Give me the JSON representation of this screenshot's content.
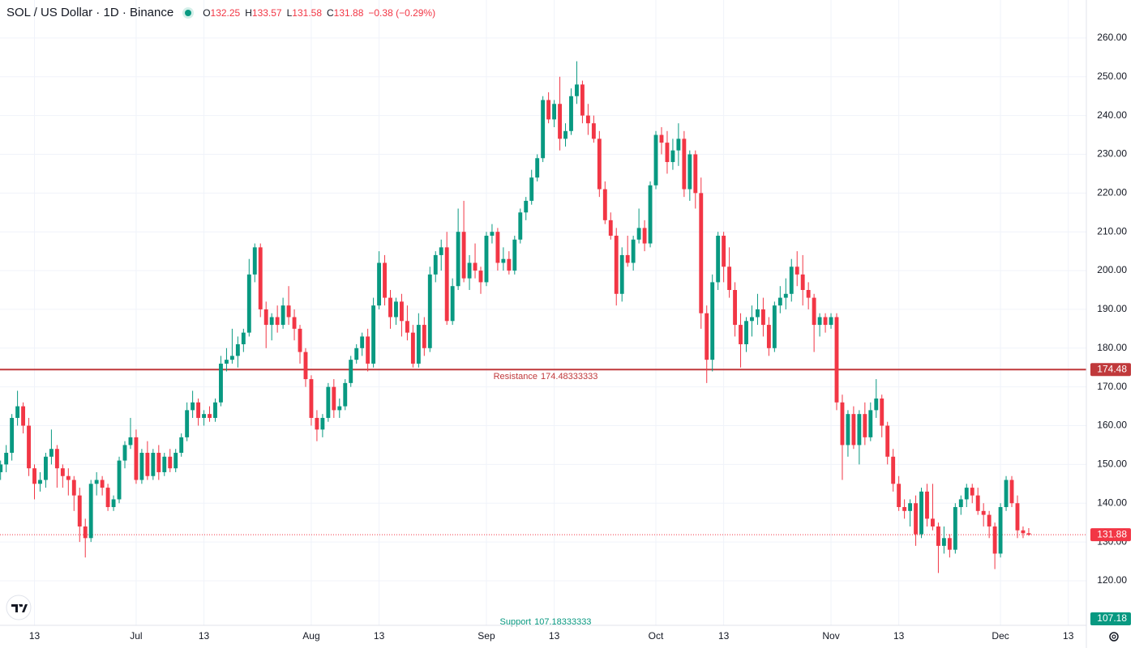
{
  "chart_data": {
    "type": "candlestick",
    "title": "SOL / US Dollar · 1D · Binance",
    "ohlc_labels": [
      "O",
      "H",
      "L",
      "C"
    ],
    "change": "−0.38 (−0.29%)",
    "up_color": "#089981",
    "down_color": "#f23645",
    "grid": true,
    "xlim": [
      -0.1,
      192.2
    ],
    "xticks": [
      {
        "value": 6,
        "label": "13"
      },
      {
        "value": 24,
        "label": "Jul"
      },
      {
        "value": 36,
        "label": "13"
      },
      {
        "value": 55,
        "label": "Aug"
      },
      {
        "value": 67,
        "label": "13"
      },
      {
        "value": 86,
        "label": "Sep"
      },
      {
        "value": 98,
        "label": "13"
      },
      {
        "value": 116,
        "label": "Oct"
      },
      {
        "value": 128,
        "label": "13"
      },
      {
        "value": 147,
        "label": "Nov"
      },
      {
        "value": 159,
        "label": "13"
      },
      {
        "value": 177,
        "label": "Dec"
      },
      {
        "value": 189,
        "label": "13"
      }
    ],
    "ylim": [
      108.5,
      269.8
    ],
    "yticks": [
      {
        "value": 120,
        "label": "120.00"
      },
      {
        "value": 130,
        "label": "130.00"
      },
      {
        "value": 140,
        "label": "140.00"
      },
      {
        "value": 150,
        "label": "150.00"
      },
      {
        "value": 160,
        "label": "160.00"
      },
      {
        "value": 170,
        "label": "170.00"
      },
      {
        "value": 180,
        "label": "180.00"
      },
      {
        "value": 190,
        "label": "190.00"
      },
      {
        "value": 200,
        "label": "200.00"
      },
      {
        "value": 210,
        "label": "210.00"
      },
      {
        "value": 220,
        "label": "220.00"
      },
      {
        "value": 230,
        "label": "230.00"
      },
      {
        "value": 240,
        "label": "240.00"
      },
      {
        "value": 250,
        "label": "250.00"
      },
      {
        "value": 260,
        "label": "260.00"
      }
    ],
    "levels": [
      {
        "name": "Resistance",
        "value": 174.48333333,
        "value_label": "174.48",
        "color": "#c0393b"
      },
      {
        "name": "Support",
        "value": 107.18333333,
        "value_label": "107.18",
        "color": "#089981"
      }
    ],
    "ohlc": [
      [
        148,
        151,
        146,
        150
      ],
      [
        150,
        155,
        148,
        153
      ],
      [
        153,
        163,
        151,
        162
      ],
      [
        162,
        169,
        160,
        165
      ],
      [
        165,
        166,
        158,
        160
      ],
      [
        160,
        162,
        147,
        149
      ],
      [
        149,
        150,
        141,
        145
      ],
      [
        145,
        148,
        143,
        146
      ],
      [
        146,
        153,
        144,
        152
      ],
      [
        152,
        159,
        150,
        154
      ],
      [
        154,
        155,
        144,
        149
      ],
      [
        149,
        150,
        144,
        147
      ],
      [
        147,
        149,
        142,
        146
      ],
      [
        146,
        147,
        138,
        142
      ],
      [
        142,
        144,
        130,
        134
      ],
      [
        134,
        136,
        126,
        131
      ],
      [
        131,
        146,
        130,
        145
      ],
      [
        145,
        148,
        142,
        146
      ],
      [
        146,
        147,
        142,
        144
      ],
      [
        144,
        145,
        138,
        139
      ],
      [
        139,
        142,
        138,
        141
      ],
      [
        141,
        152,
        140,
        151
      ],
      [
        151,
        156,
        149,
        155
      ],
      [
        155,
        162,
        154,
        157
      ],
      [
        157,
        159,
        145,
        146
      ],
      [
        146,
        154,
        145,
        153
      ],
      [
        153,
        156,
        146,
        147
      ],
      [
        147,
        154,
        146,
        153
      ],
      [
        153,
        155,
        146,
        148
      ],
      [
        148,
        153,
        147,
        152
      ],
      [
        152,
        154,
        148,
        149
      ],
      [
        149,
        154,
        148,
        153
      ],
      [
        153,
        158,
        152,
        157
      ],
      [
        157,
        166,
        156,
        164
      ],
      [
        164,
        169,
        162,
        166
      ],
      [
        166,
        167,
        160,
        162
      ],
      [
        162,
        164,
        160,
        163
      ],
      [
        163,
        165,
        161,
        162
      ],
      [
        162,
        167,
        161,
        166
      ],
      [
        166,
        178,
        165,
        176
      ],
      [
        176,
        180,
        174,
        177
      ],
      [
        177,
        185,
        176,
        178
      ],
      [
        178,
        183,
        175,
        181
      ],
      [
        181,
        185,
        179,
        184
      ],
      [
        184,
        203,
        183,
        199
      ],
      [
        199,
        207,
        197,
        206
      ],
      [
        206,
        207,
        188,
        190
      ],
      [
        190,
        192,
        180,
        186
      ],
      [
        186,
        189,
        182,
        188
      ],
      [
        188,
        191,
        184,
        186
      ],
      [
        186,
        193,
        185,
        191
      ],
      [
        191,
        196,
        186,
        188
      ],
      [
        188,
        190,
        182,
        185
      ],
      [
        185,
        186,
        176,
        179
      ],
      [
        179,
        180,
        170,
        172
      ],
      [
        172,
        173,
        160,
        162
      ],
      [
        162,
        164,
        156,
        159
      ],
      [
        159,
        163,
        157,
        162
      ],
      [
        162,
        171,
        161,
        170
      ],
      [
        170,
        172,
        162,
        164
      ],
      [
        164,
        167,
        162,
        165
      ],
      [
        165,
        172,
        164,
        171
      ],
      [
        171,
        178,
        170,
        177
      ],
      [
        177,
        181,
        176,
        180
      ],
      [
        180,
        184,
        178,
        183
      ],
      [
        183,
        185,
        174,
        176
      ],
      [
        176,
        193,
        175,
        191
      ],
      [
        191,
        205,
        190,
        202
      ],
      [
        202,
        204,
        191,
        193
      ],
      [
        193,
        195,
        185,
        188
      ],
      [
        188,
        193,
        186,
        192
      ],
      [
        192,
        194,
        183,
        187
      ],
      [
        187,
        191,
        182,
        184
      ],
      [
        184,
        186,
        175,
        176
      ],
      [
        176,
        189,
        175,
        186
      ],
      [
        186,
        188,
        178,
        180
      ],
      [
        180,
        201,
        179,
        199
      ],
      [
        199,
        205,
        197,
        204
      ],
      [
        204,
        208,
        200,
        206
      ],
      [
        206,
        210,
        186,
        187
      ],
      [
        187,
        198,
        186,
        196
      ],
      [
        196,
        216,
        195,
        210
      ],
      [
        210,
        218,
        197,
        198
      ],
      [
        198,
        204,
        195,
        202
      ],
      [
        202,
        207,
        198,
        200
      ],
      [
        200,
        201,
        194,
        197
      ],
      [
        197,
        210,
        196,
        209
      ],
      [
        209,
        212,
        207,
        210
      ],
      [
        210,
        211,
        200,
        202
      ],
      [
        202,
        206,
        200,
        203
      ],
      [
        203,
        205,
        199,
        200
      ],
      [
        200,
        209,
        199,
        208
      ],
      [
        208,
        216,
        207,
        215
      ],
      [
        215,
        219,
        213,
        218
      ],
      [
        218,
        226,
        217,
        224
      ],
      [
        224,
        230,
        223,
        229
      ],
      [
        229,
        245,
        228,
        244
      ],
      [
        244,
        246,
        238,
        239
      ],
      [
        239,
        244,
        237,
        243
      ],
      [
        243,
        250,
        231,
        234
      ],
      [
        234,
        238,
        232,
        236
      ],
      [
        236,
        247,
        235,
        245
      ],
      [
        245,
        254,
        243,
        248
      ],
      [
        248,
        249,
        238,
        240
      ],
      [
        240,
        243,
        235,
        238
      ],
      [
        238,
        240,
        233,
        234
      ],
      [
        234,
        236,
        219,
        221
      ],
      [
        221,
        223,
        212,
        213
      ],
      [
        213,
        215,
        208,
        209
      ],
      [
        209,
        211,
        191,
        194
      ],
      [
        194,
        206,
        192,
        204
      ],
      [
        204,
        209,
        201,
        202
      ],
      [
        202,
        209,
        200,
        208
      ],
      [
        208,
        216,
        207,
        211
      ],
      [
        211,
        213,
        205,
        207
      ],
      [
        207,
        223,
        206,
        222
      ],
      [
        222,
        236,
        221,
        235
      ],
      [
        235,
        237,
        230,
        233
      ],
      [
        233,
        236,
        225,
        228
      ],
      [
        228,
        234,
        226,
        231
      ],
      [
        231,
        238,
        227,
        234
      ],
      [
        234,
        236,
        219,
        221
      ],
      [
        221,
        231,
        218,
        230
      ],
      [
        230,
        231,
        216,
        220
      ],
      [
        220,
        224,
        185,
        189
      ],
      [
        189,
        191,
        171,
        177
      ],
      [
        177,
        199,
        174,
        197
      ],
      [
        197,
        210,
        195,
        209
      ],
      [
        209,
        210,
        197,
        201
      ],
      [
        201,
        206,
        193,
        195
      ],
      [
        195,
        197,
        183,
        186
      ],
      [
        186,
        189,
        175,
        181
      ],
      [
        181,
        188,
        179,
        187
      ],
      [
        187,
        191,
        183,
        188
      ],
      [
        188,
        194,
        186,
        190
      ],
      [
        190,
        193,
        183,
        186
      ],
      [
        186,
        188,
        178,
        180
      ],
      [
        180,
        192,
        179,
        191
      ],
      [
        191,
        196,
        189,
        193
      ],
      [
        193,
        198,
        190,
        194
      ],
      [
        194,
        203,
        192,
        201
      ],
      [
        201,
        205,
        196,
        199
      ],
      [
        199,
        204,
        191,
        195
      ],
      [
        195,
        197,
        190,
        193
      ],
      [
        193,
        194,
        179,
        186
      ],
      [
        186,
        189,
        183,
        188
      ],
      [
        188,
        189,
        184,
        186
      ],
      [
        186,
        189,
        185,
        188
      ],
      [
        188,
        189,
        164,
        166
      ],
      [
        166,
        168,
        146,
        155
      ],
      [
        155,
        164,
        152,
        163
      ],
      [
        163,
        165,
        154,
        155
      ],
      [
        155,
        164,
        150,
        163
      ],
      [
        163,
        166,
        155,
        157
      ],
      [
        157,
        166,
        156,
        164
      ],
      [
        164,
        172,
        162,
        167
      ],
      [
        167,
        168,
        157,
        160
      ],
      [
        160,
        161,
        150,
        152
      ],
      [
        152,
        154,
        143,
        145
      ],
      [
        145,
        147,
        138,
        139
      ],
      [
        139,
        141,
        136,
        138
      ],
      [
        138,
        141,
        134,
        140
      ],
      [
        140,
        142,
        129,
        132
      ],
      [
        132,
        144,
        131,
        143
      ],
      [
        143,
        145,
        134,
        136
      ],
      [
        136,
        145,
        133,
        134
      ],
      [
        134,
        135,
        122,
        129
      ],
      [
        129,
        134,
        127,
        131
      ],
      [
        131,
        132,
        126,
        128
      ],
      [
        128,
        140,
        127,
        139
      ],
      [
        139,
        142,
        137,
        141
      ],
      [
        141,
        145,
        139,
        144
      ],
      [
        144,
        145,
        140,
        142
      ],
      [
        142,
        144,
        137,
        138
      ],
      [
        138,
        140,
        134,
        137
      ],
      [
        137,
        138,
        131,
        134
      ],
      [
        134,
        135,
        123,
        127
      ],
      [
        127,
        140,
        126,
        139
      ],
      [
        139,
        147,
        138,
        146
      ],
      [
        146,
        147,
        139,
        140
      ],
      [
        140,
        142,
        131,
        133
      ],
      [
        133,
        134,
        131,
        132.25
      ],
      [
        132.25,
        133.57,
        131.58,
        131.88
      ]
    ]
  }
}
